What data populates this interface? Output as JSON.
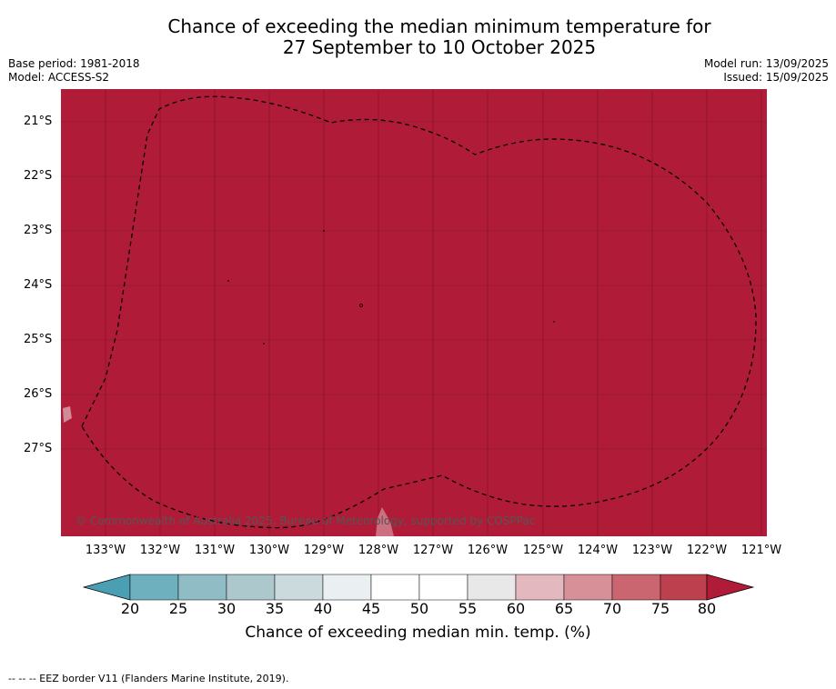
{
  "title": {
    "line1": "Chance of exceeding the median minimum temperature for",
    "line2": "27 September to 10 October 2025"
  },
  "meta": {
    "base_period": "Base period: 1981-2018",
    "model": "Model: ACCESS-S2",
    "model_run": "Model run: 13/09/2025",
    "issued": "Issued: 15/09/2025"
  },
  "map": {
    "fill_color": "#b01c38",
    "copyright": "© Commonwealth of Australia 2025, Bureau of Meteorology, supported by COSPPac",
    "latitudes": [
      "21°S",
      "22°S",
      "23°S",
      "24°S",
      "25°S",
      "26°S",
      "27°S"
    ],
    "longitudes": [
      "133°W",
      "132°W",
      "131°W",
      "130°W",
      "129°W",
      "128°W",
      "127°W",
      "126°W",
      "125°W",
      "124°W",
      "123°W",
      "122°W",
      "121°W"
    ],
    "dominant_category": "> 80"
  },
  "colorbar": {
    "ticks": [
      "20",
      "25",
      "30",
      "35",
      "40",
      "45",
      "50",
      "55",
      "60",
      "65",
      "70",
      "75",
      "80"
    ],
    "colors": [
      "#4aa0b2",
      "#6fb0bf",
      "#90bcc6",
      "#acc8cd",
      "#cbdadd",
      "#eaf0f1",
      "#ffffff",
      "#ffffff",
      "#e8e8e8",
      "#e3b8bf",
      "#d78f98",
      "#c96670",
      "#bd404f",
      "#b01c38"
    ],
    "label": "Chance of exceeding median min. temp. (%)"
  },
  "footnote": "--  --  -- EEZ border V11 (Flanders Marine Institute, 2019)."
}
